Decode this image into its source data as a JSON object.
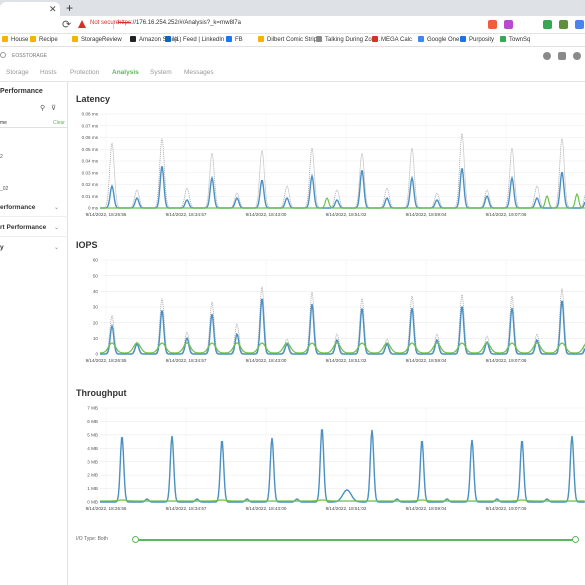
{
  "browser": {
    "address": {
      "not_secure": "Not secure",
      "url_https": "https",
      "url_rest": "://176.16.254.252/#/Analysis?_k=rnw8l7a"
    },
    "bookmarks": [
      {
        "label": "House",
        "color": "#f4b400"
      },
      {
        "label": "Recipe",
        "color": "#f4b400"
      },
      {
        "label": "StorageReview",
        "color": "#f4b400"
      },
      {
        "label": "Amazon Smile",
        "color": "#222222"
      },
      {
        "label": "(1) Feed | LinkedIn",
        "color": "#0a66c2"
      },
      {
        "label": "FB",
        "color": "#1877f2"
      },
      {
        "label": "Dilbert Comic Strip...",
        "color": "#f4b400"
      },
      {
        "label": "Talking During Zoo...",
        "color": "#888888"
      },
      {
        "label": "MEGA Calc",
        "color": "#d93025"
      },
      {
        "label": "Google One",
        "color": "#4285f4"
      },
      {
        "label": "Purposity",
        "color": "#1a73e8"
      },
      {
        "label": "TownSq",
        "color": "#34a853"
      }
    ]
  },
  "app": {
    "title": "EOSSTORAGE",
    "nav": [
      {
        "label": "Storage",
        "active": false
      },
      {
        "label": "Hosts",
        "active": false
      },
      {
        "label": "Protection",
        "active": false
      },
      {
        "label": "Analysis",
        "active": true
      },
      {
        "label": "System",
        "active": false
      },
      {
        "label": "Messages",
        "active": false
      }
    ]
  },
  "sidebar": {
    "title": "Performance",
    "name_header": "me",
    "clear_label": "Clear",
    "rows": [
      "2",
      "_02"
    ],
    "sections": [
      "erformance",
      "rt Performance",
      "y"
    ]
  },
  "charts": {
    "color_read": "#a8aab0",
    "color_main": "#4a90c2",
    "color_alt": "#6cc24a",
    "latency": {
      "title": "Latency",
      "yticks": [
        "0.08 ms",
        "0.07 ms",
        "0.06 ms",
        "0.05 ms",
        "0.04 ms",
        "0.03 ms",
        "0.02 ms",
        "0.01 ms",
        "0 ms"
      ],
      "xticks": [
        "9/14/2022, 18:26:55",
        "9/14/2022, 18:34:57",
        "9/14/2022, 18:43:00",
        "9/14/2022, 18:51:02",
        "9/14/2022, 18:59:04",
        "9/14/2022, 19:07:06"
      ]
    },
    "iops": {
      "title": "IOPS",
      "yticks": [
        "60",
        "50",
        "40",
        "30",
        "20",
        "10",
        "0"
      ],
      "xticks": [
        "9/14/2022, 18:26:55",
        "9/14/2022, 18:34:57",
        "9/14/2022, 18:43:00",
        "9/14/2022, 18:51:02",
        "9/14/2022, 18:59:04",
        "9/14/2022, 19:07:06"
      ]
    },
    "throughput": {
      "title": "Throughput",
      "yticks": [
        "7 MB",
        "6 MB",
        "5 MB",
        "4 MB",
        "3 MB",
        "2 MB",
        "1 MB",
        "0 MB"
      ],
      "xticks": [
        "9/14/2022, 18:26:55",
        "9/14/2022, 18:34:57",
        "9/14/2022, 18:43:00",
        "9/14/2022, 18:51:02",
        "9/14/2022, 18:59:04",
        "9/14/2022, 19:07:06"
      ]
    }
  },
  "footer": {
    "io_type_label": "I/O Type: Both"
  }
}
